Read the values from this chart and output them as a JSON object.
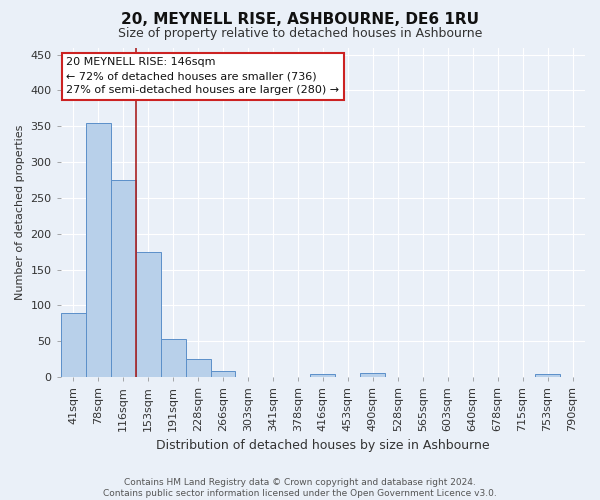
{
  "title": "20, MEYNELL RISE, ASHBOURNE, DE6 1RU",
  "subtitle": "Size of property relative to detached houses in Ashbourne",
  "xlabel": "Distribution of detached houses by size in Ashbourne",
  "ylabel": "Number of detached properties",
  "footer_line1": "Contains HM Land Registry data © Crown copyright and database right 2024.",
  "footer_line2": "Contains public sector information licensed under the Open Government Licence v3.0.",
  "categories": [
    "41sqm",
    "78sqm",
    "116sqm",
    "153sqm",
    "191sqm",
    "228sqm",
    "266sqm",
    "303sqm",
    "341sqm",
    "378sqm",
    "416sqm",
    "453sqm",
    "490sqm",
    "528sqm",
    "565sqm",
    "603sqm",
    "640sqm",
    "678sqm",
    "715sqm",
    "753sqm",
    "790sqm"
  ],
  "values": [
    90,
    355,
    275,
    175,
    53,
    25,
    8,
    0,
    0,
    0,
    4,
    0,
    5,
    0,
    0,
    0,
    0,
    0,
    0,
    4,
    0
  ],
  "bar_color": "#b8d0ea",
  "bar_edge_color": "#5b8fc9",
  "background_color": "#eaf0f8",
  "grid_color": "#ffffff",
  "vline_x": 2.5,
  "vline_color": "#aa2222",
  "annotation_line1": "20 MEYNELL RISE: 146sqm",
  "annotation_line2": "← 72% of detached houses are smaller (736)",
  "annotation_line3": "27% of semi-detached houses are larger (280) →",
  "annotation_box_color": "#ffffff",
  "annotation_box_edge_color": "#cc2222",
  "ylim": [
    0,
    460
  ],
  "yticks": [
    0,
    50,
    100,
    150,
    200,
    250,
    300,
    350,
    400,
    450
  ],
  "title_fontsize": 11,
  "subtitle_fontsize": 9,
  "xlabel_fontsize": 9,
  "ylabel_fontsize": 8,
  "tick_fontsize": 8,
  "annot_fontsize": 8
}
